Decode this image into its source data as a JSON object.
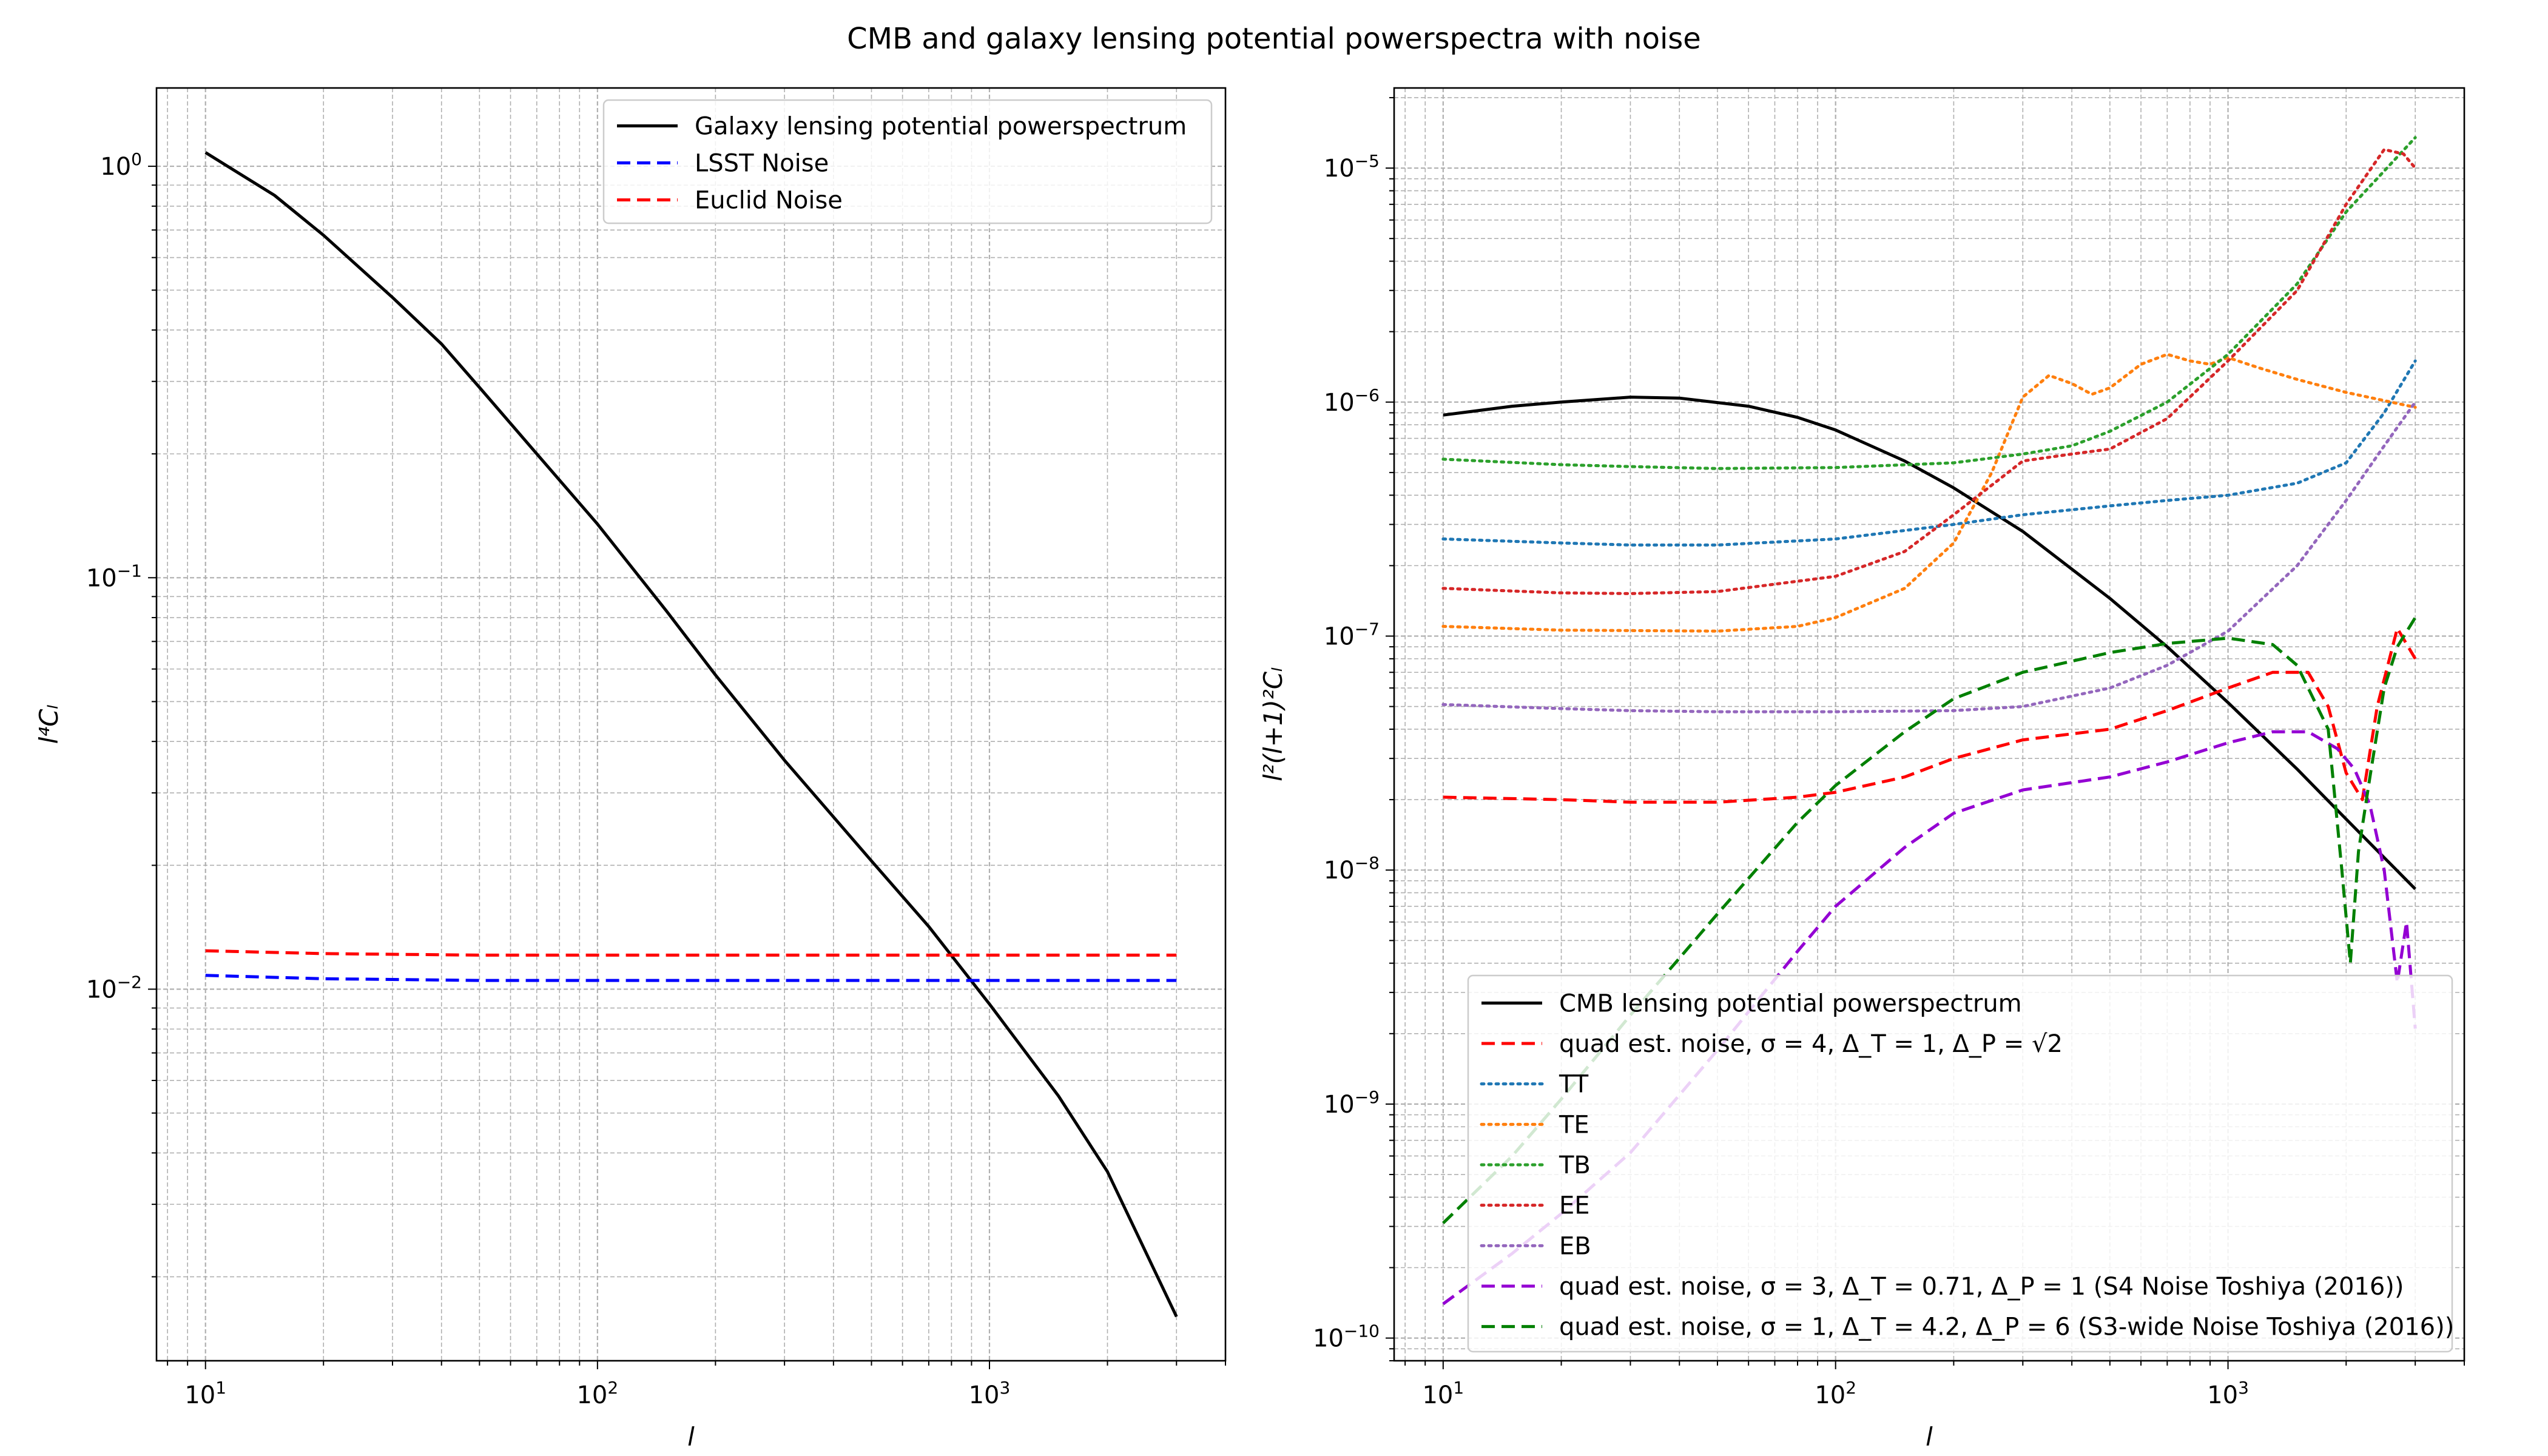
{
  "figure_title": "CMB and galaxy lensing potential powerspectra with noise",
  "chart_data": [
    {
      "type": "line",
      "xscale": "log",
      "yscale": "log",
      "xlabel": "l",
      "ylabel": "l⁴Cₗ",
      "xlim": [
        7.5,
        4000
      ],
      "ylim": [
        0.00125,
        1.55
      ],
      "grid": "both",
      "legend_position": "upper-right",
      "x_ticks": [
        {
          "v": 10,
          "b": "10",
          "e": "1"
        },
        {
          "v": 100,
          "b": "10",
          "e": "2"
        },
        {
          "v": 1000,
          "b": "10",
          "e": "3"
        }
      ],
      "y_ticks": [
        {
          "v": 0.01,
          "b": "10",
          "e": "−2"
        },
        {
          "v": 0.1,
          "b": "10",
          "e": "−1"
        },
        {
          "v": 1,
          "b": "10",
          "e": "0"
        }
      ],
      "series": [
        {
          "name": "Galaxy lensing potential powerspectrum",
          "color": "#000000",
          "style": "solid",
          "x": [
            10,
            15,
            20,
            30,
            40,
            50,
            70,
            100,
            150,
            200,
            300,
            500,
            700,
            1000,
            1500,
            2000,
            3000
          ],
          "y": [
            1.08,
            0.85,
            0.68,
            0.48,
            0.37,
            0.29,
            0.2,
            0.135,
            0.083,
            0.058,
            0.036,
            0.0205,
            0.0142,
            0.0092,
            0.0055,
            0.0036,
            0.0016
          ]
        },
        {
          "name": "LSST Noise",
          "color": "#0000ff",
          "style": "dashed",
          "x": [
            10,
            20,
            50,
            100,
            1000,
            3000
          ],
          "y": [
            0.0108,
            0.0106,
            0.0105,
            0.0105,
            0.0105,
            0.0105
          ]
        },
        {
          "name": "Euclid Noise",
          "color": "#ff0000",
          "style": "dashed",
          "x": [
            10,
            20,
            50,
            100,
            1000,
            3000
          ],
          "y": [
            0.0124,
            0.0122,
            0.0121,
            0.0121,
            0.0121,
            0.0121
          ]
        }
      ]
    },
    {
      "type": "line",
      "xscale": "log",
      "yscale": "log",
      "xlabel": "l",
      "ylabel": "l²(l+1)²Cₗ",
      "xlim": [
        7.5,
        4000
      ],
      "ylim": [
        8e-11,
        2.2e-05
      ],
      "grid": "both",
      "legend_position": "lower-right",
      "x_ticks": [
        {
          "v": 10,
          "b": "10",
          "e": "1"
        },
        {
          "v": 100,
          "b": "10",
          "e": "2"
        },
        {
          "v": 1000,
          "b": "10",
          "e": "3"
        }
      ],
      "y_ticks": [
        {
          "v": 1e-10,
          "b": "10",
          "e": "−10"
        },
        {
          "v": 1e-09,
          "b": "10",
          "e": "−9"
        },
        {
          "v": 1e-08,
          "b": "10",
          "e": "−8"
        },
        {
          "v": 1e-07,
          "b": "10",
          "e": "−7"
        },
        {
          "v": 1e-06,
          "b": "10",
          "e": "−6"
        },
        {
          "v": 1e-05,
          "b": "10",
          "e": "−5"
        }
      ],
      "series": [
        {
          "name": "CMB lensing potential powerspectrum",
          "color": "#000000",
          "style": "solid",
          "x": [
            10,
            15,
            20,
            30,
            40,
            60,
            80,
            100,
            150,
            200,
            300,
            500,
            700,
            1000,
            1500,
            2000,
            3000
          ],
          "y": [
            8.8e-07,
            9.6e-07,
            1e-06,
            1.05e-06,
            1.04e-06,
            9.6e-07,
            8.6e-07,
            7.6e-07,
            5.6e-07,
            4.3e-07,
            2.8e-07,
            1.45e-07,
            9e-08,
            5.2e-08,
            2.7e-08,
            1.65e-08,
            8.3e-09
          ]
        },
        {
          "name": "quad est. noise, σ = 4, Δ_T = 1, Δ_P = √2",
          "color": "#ff0000",
          "style": "dashed",
          "x": [
            10,
            20,
            30,
            50,
            80,
            100,
            150,
            200,
            300,
            500,
            700,
            1000,
            1300,
            1600,
            1800,
            2000,
            2200,
            2400,
            2700,
            3000
          ],
          "y": [
            2.05e-08,
            2e-08,
            1.95e-08,
            1.95e-08,
            2.05e-08,
            2.15e-08,
            2.5e-08,
            3e-08,
            3.6e-08,
            4e-08,
            4.8e-08,
            6e-08,
            7e-08,
            7e-08,
            5e-08,
            2.6e-08,
            2e-08,
            5e-08,
            1.08e-07,
            8e-08
          ]
        },
        {
          "name": "TT",
          "color": "#1f77b4",
          "style": "dotted",
          "x": [
            10,
            20,
            30,
            50,
            100,
            200,
            300,
            500,
            700,
            1000,
            1500,
            2000,
            2500,
            3000
          ],
          "y": [
            2.6e-07,
            2.5e-07,
            2.45e-07,
            2.45e-07,
            2.6e-07,
            3e-07,
            3.3e-07,
            3.6e-07,
            3.8e-07,
            4e-07,
            4.5e-07,
            5.5e-07,
            9e-07,
            1.5e-06
          ]
        },
        {
          "name": "TE",
          "color": "#ff7f0e",
          "style": "dotted",
          "x": [
            10,
            20,
            50,
            80,
            100,
            150,
            200,
            250,
            300,
            350,
            400,
            450,
            500,
            600,
            700,
            800,
            900,
            1000,
            1200,
            1500,
            2000,
            3000
          ],
          "y": [
            1.1e-07,
            1.06e-07,
            1.05e-07,
            1.1e-07,
            1.2e-07,
            1.6e-07,
            2.5e-07,
            5e-07,
            1.05e-06,
            1.3e-06,
            1.2e-06,
            1.08e-06,
            1.15e-06,
            1.45e-06,
            1.6e-06,
            1.5e-06,
            1.45e-06,
            1.55e-06,
            1.4e-06,
            1.25e-06,
            1.1e-06,
            9.5e-07
          ]
        },
        {
          "name": "TB",
          "color": "#2ca02c",
          "style": "dotted",
          "x": [
            10,
            20,
            30,
            50,
            100,
            200,
            300,
            400,
            500,
            700,
            1000,
            1500,
            2000,
            3000
          ],
          "y": [
            5.7e-07,
            5.4e-07,
            5.3e-07,
            5.2e-07,
            5.25e-07,
            5.5e-07,
            6e-07,
            6.5e-07,
            7.5e-07,
            1e-06,
            1.6e-06,
            3.2e-06,
            6.5e-06,
            1.35e-05
          ]
        },
        {
          "name": "EE",
          "color": "#d62728",
          "style": "dotted",
          "x": [
            10,
            20,
            30,
            50,
            100,
            150,
            200,
            300,
            400,
            500,
            700,
            1000,
            1500,
            2000,
            2500,
            2800,
            3000
          ],
          "y": [
            1.6e-07,
            1.53e-07,
            1.52e-07,
            1.55e-07,
            1.8e-07,
            2.3e-07,
            3.3e-07,
            5.6e-07,
            6e-07,
            6.3e-07,
            8.5e-07,
            1.5e-06,
            3e-06,
            7e-06,
            1.2e-05,
            1.15e-05,
            1e-05
          ]
        },
        {
          "name": "EB",
          "color": "#9467bd",
          "style": "dotted",
          "x": [
            10,
            20,
            30,
            50,
            100,
            200,
            300,
            500,
            700,
            1000,
            1500,
            2000,
            2500,
            3000
          ],
          "y": [
            5.1e-08,
            4.9e-08,
            4.8e-08,
            4.75e-08,
            4.75e-08,
            4.8e-08,
            5e-08,
            6e-08,
            7.5e-08,
            1.05e-07,
            2e-07,
            3.8e-07,
            6.5e-07,
            1e-06
          ]
        },
        {
          "name": "quad est. noise, σ = 3, Δ_T = 0.71, Δ_P = 1 (S4 Noise Toshiya (2016))",
          "color": "#9400d3",
          "style": "dashed",
          "x": [
            10,
            15,
            20,
            30,
            50,
            80,
            100,
            150,
            200,
            300,
            500,
            700,
            1000,
            1300,
            1600,
            1900,
            2100,
            2300,
            2500,
            2700,
            2850,
            3000
          ],
          "y": [
            1.4e-10,
            2.3e-10,
            3.4e-10,
            6.2e-10,
            1.7e-09,
            4.5e-09,
            7e-09,
            1.25e-08,
            1.75e-08,
            2.2e-08,
            2.5e-08,
            2.9e-08,
            3.5e-08,
            3.9e-08,
            3.9e-08,
            3.3e-08,
            2.7e-08,
            1.9e-08,
            1e-08,
            3.3e-09,
            6e-09,
            2.1e-09
          ]
        },
        {
          "name": "quad est. noise, σ = 1, Δ_T = 4.2, Δ_P = 6 (S3-wide Noise Toshiya (2016))",
          "color": "#008000",
          "style": "dashed",
          "x": [
            10,
            15,
            20,
            30,
            50,
            80,
            100,
            150,
            200,
            300,
            500,
            700,
            1000,
            1300,
            1500,
            1800,
            1950,
            2050,
            2150,
            2300,
            2500,
            2700,
            3000
          ],
          "y": [
            3.1e-10,
            6e-10,
            1.05e-09,
            2.4e-09,
            6.5e-09,
            1.6e-08,
            2.3e-08,
            3.9e-08,
            5.4e-08,
            7e-08,
            8.5e-08,
            9.3e-08,
            9.8e-08,
            9.2e-08,
            7.5e-08,
            4e-08,
            1e-08,
            4e-09,
            1.2e-08,
            2.5e-08,
            6e-08,
            9e-08,
            1.2e-07
          ]
        }
      ]
    }
  ]
}
